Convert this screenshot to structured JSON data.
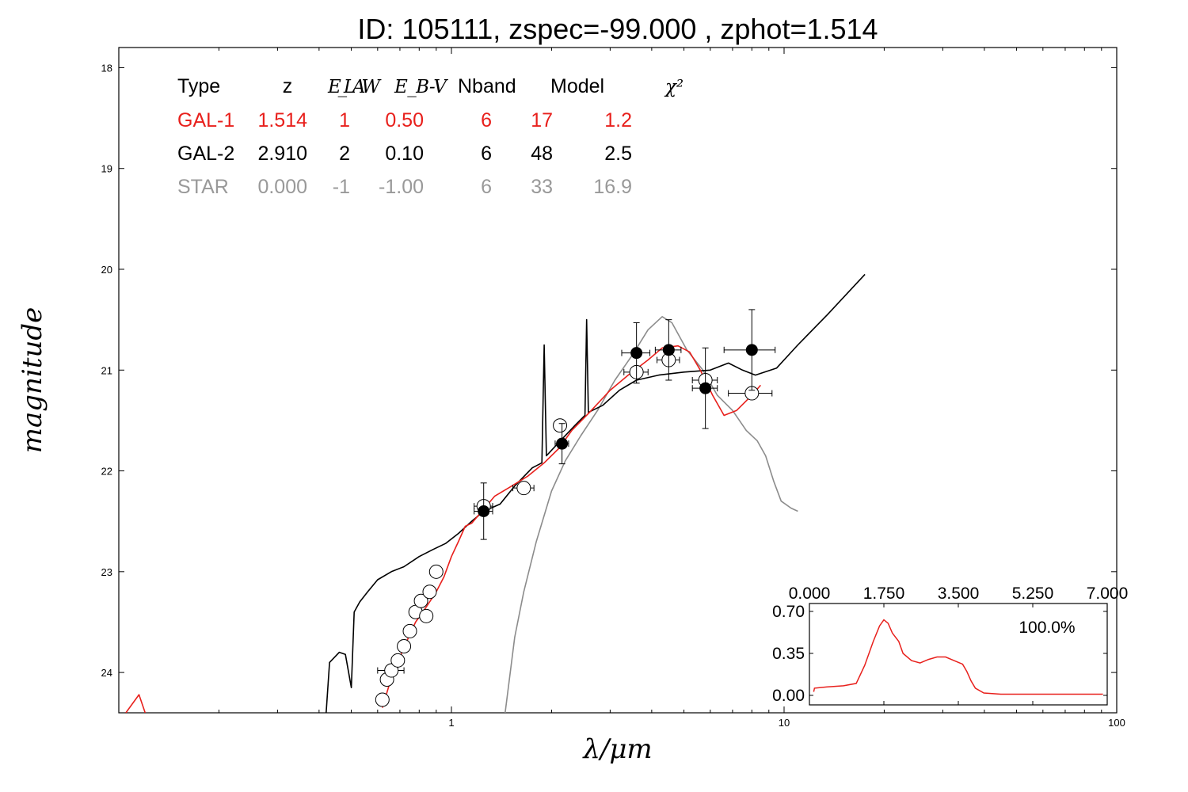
{
  "chart_data": [
    {
      "type": "scatter",
      "title": "ID:  105111, zspec=-99.000 , zphot=1.514",
      "xlabel": "λ/μm",
      "ylabel": "magnitude",
      "xscale": "log",
      "xlim": [
        0.1,
        100
      ],
      "ylim": [
        24.4,
        17.8
      ],
      "yticks": [
        "18",
        "19",
        "20",
        "21",
        "22",
        "23",
        "24"
      ],
      "xticks": [
        "1",
        "10",
        "100"
      ],
      "colors": {
        "gal1": "#e8201c",
        "gal2": "#000000",
        "star": "#8c8c8c"
      },
      "table": {
        "headers": [
          "Type",
          "z",
          "E_LAW",
          "E_B-V",
          "Nband",
          "Model",
          "χ²"
        ],
        "rows": [
          {
            "type": "GAL-1",
            "z": "1.514",
            "elaw": "1",
            "ebv": "0.50",
            "nband": "6",
            "model": "17",
            "chi2": "1.2",
            "color": "#e8201c"
          },
          {
            "type": "GAL-2",
            "z": "2.910",
            "elaw": "2",
            "ebv": "0.10",
            "nband": "6",
            "model": "48",
            "chi2": "2.5",
            "color": "#000000"
          },
          {
            "type": "STAR",
            "z": "0.000",
            "elaw": "-1",
            "ebv": "-1.00",
            "nband": "6",
            "model": "33",
            "chi2": "16.9",
            "color": "#999999"
          }
        ]
      },
      "observed_filled": [
        {
          "x": 1.25,
          "y": 22.4,
          "xerr": 0.08,
          "yerr": 0.28
        },
        {
          "x": 2.15,
          "y": 21.73,
          "xerr": 0.1,
          "yerr": 0.2
        },
        {
          "x": 3.6,
          "y": 20.83,
          "xerr": 0.35,
          "yerr": 0.3
        },
        {
          "x": 4.5,
          "y": 20.8,
          "xerr": 0.4,
          "yerr": 0.3
        },
        {
          "x": 5.8,
          "y": 21.18,
          "xerr": 0.5,
          "yerr": 0.4
        },
        {
          "x": 8.0,
          "y": 20.8,
          "xerr": 1.4,
          "yerr": 0.4
        }
      ],
      "model_open": [
        {
          "x": 0.62,
          "y": 24.27
        },
        {
          "x": 0.64,
          "y": 24.07
        },
        {
          "x": 0.66,
          "y": 23.98,
          "xerr": 0.06
        },
        {
          "x": 0.69,
          "y": 23.88
        },
        {
          "x": 0.72,
          "y": 23.74
        },
        {
          "x": 0.75,
          "y": 23.59
        },
        {
          "x": 0.78,
          "y": 23.4
        },
        {
          "x": 0.81,
          "y": 23.29
        },
        {
          "x": 0.84,
          "y": 23.44
        },
        {
          "x": 0.86,
          "y": 23.2
        },
        {
          "x": 0.9,
          "y": 23.0
        },
        {
          "x": 1.25,
          "y": 22.35,
          "xerr": 0.08
        },
        {
          "x": 1.65,
          "y": 22.17,
          "xerr": 0.12
        },
        {
          "x": 2.12,
          "y": 21.55,
          "xerr": 0.08
        },
        {
          "x": 3.6,
          "y": 21.02,
          "xerr": 0.3
        },
        {
          "x": 4.5,
          "y": 20.9,
          "xerr": 0.35
        },
        {
          "x": 5.8,
          "y": 21.1,
          "xerr": 0.5
        },
        {
          "x": 8.0,
          "y": 21.23,
          "xerr": 1.2
        }
      ],
      "sed_gal1": [
        [
          0.105,
          24.4
        ],
        [
          0.115,
          24.22
        ],
        [
          0.12,
          24.4
        ],
        [
          0.62,
          24.35
        ],
        [
          0.66,
          24.05
        ],
        [
          0.72,
          23.75
        ],
        [
          0.78,
          23.5
        ],
        [
          0.84,
          23.35
        ],
        [
          0.9,
          23.2
        ],
        [
          0.95,
          23.05
        ],
        [
          1.0,
          22.85
        ],
        [
          1.05,
          22.7
        ],
        [
          1.1,
          22.55
        ],
        [
          1.15,
          22.52
        ],
        [
          1.25,
          22.38
        ],
        [
          1.35,
          22.25
        ],
        [
          1.5,
          22.16
        ],
        [
          1.7,
          22.05
        ],
        [
          1.9,
          21.92
        ],
        [
          2.1,
          21.78
        ],
        [
          2.3,
          21.6
        ],
        [
          2.6,
          21.42
        ],
        [
          3.0,
          21.2
        ],
        [
          3.4,
          21.05
        ],
        [
          3.9,
          20.9
        ],
        [
          4.3,
          20.78
        ],
        [
          4.8,
          20.76
        ],
        [
          5.2,
          20.82
        ],
        [
          5.6,
          21.0
        ],
        [
          6.1,
          21.25
        ],
        [
          6.6,
          21.45
        ],
        [
          7.2,
          21.4
        ],
        [
          8.0,
          21.25
        ],
        [
          8.5,
          21.15
        ]
      ],
      "sed_gal2": [
        [
          0.42,
          24.4
        ],
        [
          0.43,
          23.9
        ],
        [
          0.46,
          23.8
        ],
        [
          0.48,
          23.82
        ],
        [
          0.5,
          24.15
        ],
        [
          0.51,
          23.4
        ],
        [
          0.53,
          23.3
        ],
        [
          0.56,
          23.2
        ],
        [
          0.6,
          23.08
        ],
        [
          0.66,
          23.0
        ],
        [
          0.72,
          22.95
        ],
        [
          0.8,
          22.85
        ],
        [
          0.88,
          22.78
        ],
        [
          0.96,
          22.72
        ],
        [
          1.05,
          22.62
        ],
        [
          1.15,
          22.5
        ],
        [
          1.25,
          22.4
        ],
        [
          1.4,
          22.33
        ],
        [
          1.55,
          22.15
        ],
        [
          1.75,
          21.97
        ],
        [
          1.87,
          21.92
        ],
        [
          1.9,
          20.75
        ],
        [
          1.93,
          21.85
        ],
        [
          2.1,
          21.72
        ],
        [
          2.35,
          21.55
        ],
        [
          2.52,
          21.45
        ],
        [
          2.55,
          20.5
        ],
        [
          2.58,
          21.42
        ],
        [
          2.85,
          21.35
        ],
        [
          3.2,
          21.2
        ],
        [
          3.6,
          21.1
        ],
        [
          4.2,
          21.05
        ],
        [
          5.0,
          21.02
        ],
        [
          6.0,
          21.0
        ],
        [
          6.8,
          20.93
        ],
        [
          7.5,
          21.0
        ],
        [
          8.2,
          21.05
        ],
        [
          9.5,
          20.98
        ],
        [
          11.0,
          20.75
        ],
        [
          13.5,
          20.45
        ],
        [
          17.5,
          20.05
        ]
      ],
      "sed_star": [
        [
          1.45,
          24.4
        ],
        [
          1.55,
          23.65
        ],
        [
          1.65,
          23.2
        ],
        [
          1.8,
          22.7
        ],
        [
          2.0,
          22.2
        ],
        [
          2.2,
          21.9
        ],
        [
          2.45,
          21.65
        ],
        [
          2.75,
          21.4
        ],
        [
          3.1,
          21.1
        ],
        [
          3.5,
          20.85
        ],
        [
          3.9,
          20.6
        ],
        [
          4.3,
          20.47
        ],
        [
          4.6,
          20.53
        ],
        [
          5.1,
          20.8
        ],
        [
          5.7,
          21.0
        ],
        [
          6.3,
          21.25
        ],
        [
          7.0,
          21.4
        ],
        [
          7.7,
          21.6
        ],
        [
          8.3,
          21.7
        ],
        [
          8.8,
          21.85
        ],
        [
          9.3,
          22.1
        ],
        [
          9.8,
          22.3
        ],
        [
          10.5,
          22.37
        ],
        [
          11.0,
          22.4
        ]
      ]
    },
    {
      "type": "line",
      "title": "",
      "annotation": "100.0%",
      "xlim": [
        0.0,
        7.0
      ],
      "ylim": [
        0.0,
        0.7
      ],
      "xticks": [
        "0.000",
        "1.750",
        "3.500",
        "5.250",
        "7.000"
      ],
      "yticks": [
        "0.70",
        "0.35",
        "0.00"
      ],
      "series": [
        {
          "color": "#e8201c",
          "points": [
            [
              0.1,
              0.03
            ],
            [
              0.12,
              0.06
            ],
            [
              0.4,
              0.07
            ],
            [
              0.8,
              0.08
            ],
            [
              1.1,
              0.1
            ],
            [
              1.3,
              0.25
            ],
            [
              1.5,
              0.45
            ],
            [
              1.65,
              0.58
            ],
            [
              1.75,
              0.63
            ],
            [
              1.85,
              0.6
            ],
            [
              1.95,
              0.52
            ],
            [
              2.1,
              0.45
            ],
            [
              2.2,
              0.35
            ],
            [
              2.4,
              0.29
            ],
            [
              2.6,
              0.27
            ],
            [
              2.8,
              0.3
            ],
            [
              3.0,
              0.32
            ],
            [
              3.2,
              0.32
            ],
            [
              3.4,
              0.29
            ],
            [
              3.6,
              0.26
            ],
            [
              3.7,
              0.2
            ],
            [
              3.8,
              0.12
            ],
            [
              3.9,
              0.06
            ],
            [
              4.1,
              0.02
            ],
            [
              4.5,
              0.01
            ],
            [
              6.9,
              0.01
            ]
          ]
        }
      ]
    }
  ]
}
